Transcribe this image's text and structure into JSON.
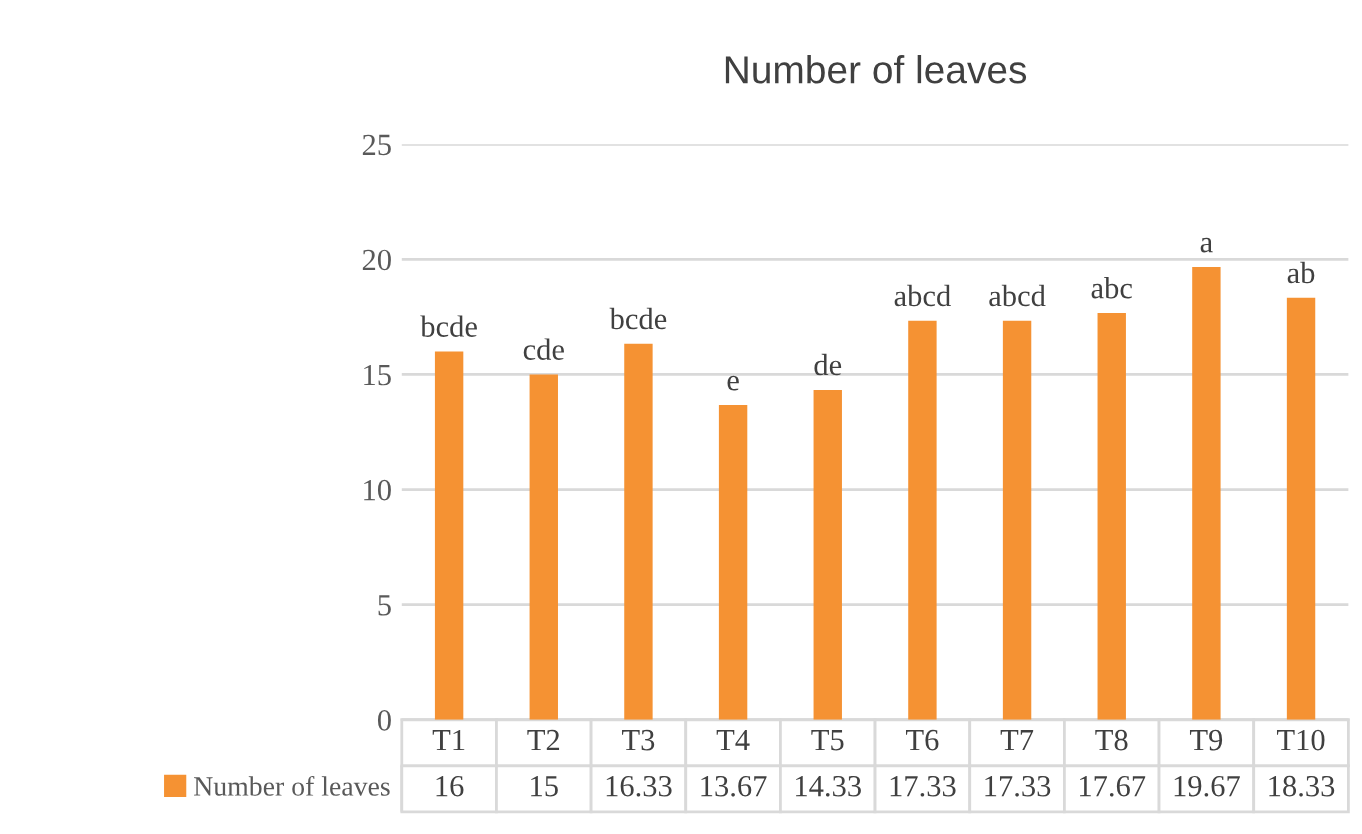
{
  "chart_data": {
    "type": "bar",
    "title": "Number of leaves",
    "categories": [
      "T1",
      "T2",
      "T3",
      "T4",
      "T5",
      "T6",
      "T7",
      "T8",
      "T9",
      "T10"
    ],
    "series": [
      {
        "name": "Number of leaves",
        "color": "#f59233",
        "values": [
          16,
          15,
          16.33,
          13.67,
          14.33,
          17.33,
          17.33,
          17.67,
          19.67,
          18.33
        ]
      }
    ],
    "ylim": [
      0,
      25
    ],
    "yticks": [
      0,
      5,
      10,
      15,
      20,
      25
    ],
    "grid": "y",
    "legend": "bottom left",
    "data_labels": true,
    "annotations": [
      {
        "text": "bcde",
        "x": "T1",
        "y": 16
      },
      {
        "text": "cde",
        "x": "T2",
        "y": 15
      },
      {
        "text": "bcde",
        "x": "T3",
        "y": 16.33
      },
      {
        "text": "e",
        "x": "T4",
        "y": 13.67
      },
      {
        "text": "de",
        "x": "T5",
        "y": 14.33
      },
      {
        "text": "abcd",
        "x": "T6",
        "y": 17.33
      },
      {
        "text": "abcd",
        "x": "T7",
        "y": 17.33
      },
      {
        "text": "abc",
        "x": "T8",
        "y": 17.67
      },
      {
        "text": "a",
        "x": "T9",
        "y": 19.67
      },
      {
        "text": "ab",
        "x": "T10",
        "y": 18.33
      }
    ]
  }
}
